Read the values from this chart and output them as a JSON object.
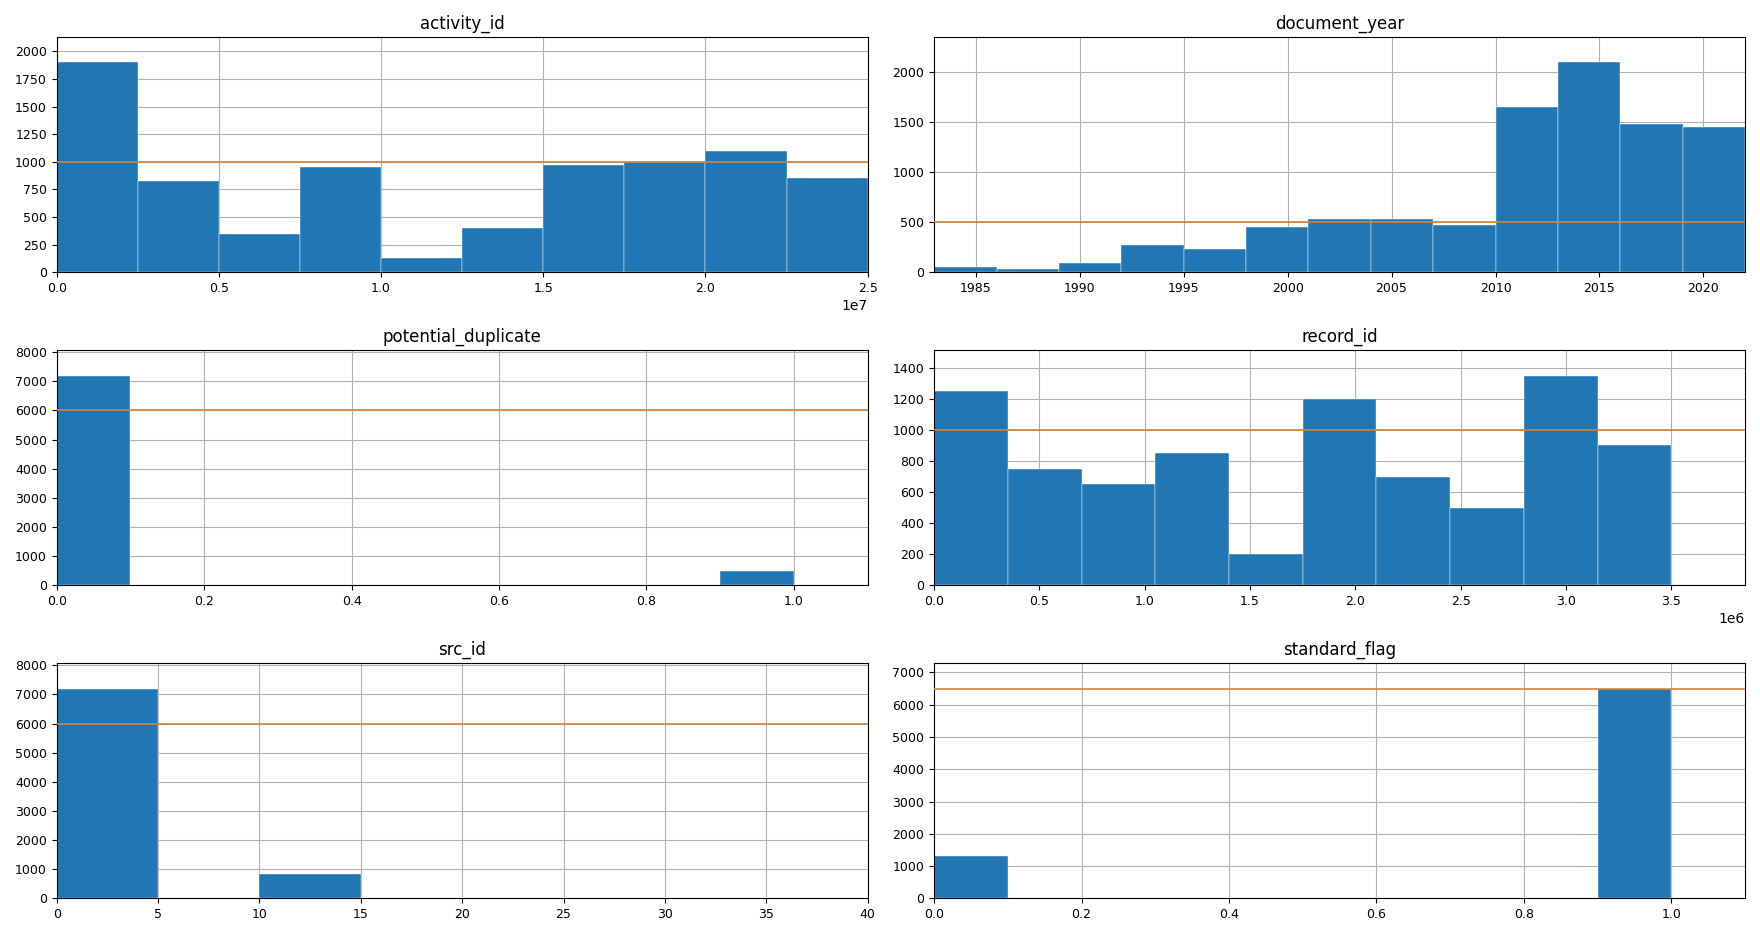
{
  "subplots": [
    {
      "title": "activity_id",
      "bin_edges": [
        0,
        2500000,
        5000000,
        7500000,
        10000000,
        12500000,
        15000000,
        17500000,
        20000000,
        22500000,
        25000000
      ],
      "bin_heights": [
        1900,
        825,
        350,
        950,
        125,
        400,
        975,
        1000,
        1100,
        850
      ],
      "row": 0,
      "col": 0,
      "hlines": [
        1000
      ]
    },
    {
      "title": "document_year",
      "bin_edges": [
        1983,
        1986,
        1989,
        1992,
        1995,
        1998,
        2001,
        2004,
        2007,
        2010,
        2013,
        2016,
        2019,
        2022
      ],
      "bin_heights": [
        50,
        30,
        90,
        275,
        230,
        450,
        535,
        530,
        475,
        1650,
        2100,
        1480,
        1450
      ],
      "row": 0,
      "col": 1,
      "hlines": [
        500
      ]
    },
    {
      "title": "potential_duplicate",
      "bin_edges": [
        0.0,
        0.1,
        0.2,
        0.3,
        0.4,
        0.5,
        0.6,
        0.7,
        0.8,
        0.9,
        1.0,
        1.1
      ],
      "bin_heights": [
        7200,
        0,
        0,
        0,
        0,
        0,
        0,
        0,
        0,
        500,
        0
      ],
      "row": 1,
      "col": 0,
      "hlines": [
        6000
      ]
    },
    {
      "title": "record_id",
      "bin_edges": [
        0,
        350000,
        700000,
        1050000,
        1400000,
        1750000,
        2100000,
        2450000,
        2800000,
        3150000,
        3500000,
        3850000
      ],
      "bin_heights": [
        1250,
        750,
        650,
        850,
        200,
        1200,
        700,
        500,
        1350,
        900,
        0
      ],
      "row": 1,
      "col": 1,
      "hlines": [
        1000
      ]
    },
    {
      "title": "src_id",
      "bin_edges": [
        0,
        5,
        10,
        15,
        20,
        25,
        30,
        35,
        40
      ],
      "bin_heights": [
        7200,
        0,
        850,
        0,
        0,
        0,
        0,
        20
      ],
      "row": 2,
      "col": 0,
      "hlines": [
        6000
      ]
    },
    {
      "title": "standard_flag",
      "bin_edges": [
        0.0,
        0.1,
        0.2,
        0.3,
        0.4,
        0.5,
        0.6,
        0.7,
        0.8,
        0.9,
        1.0,
        1.1
      ],
      "bin_heights": [
        1300,
        0,
        0,
        0,
        0,
        0,
        0,
        0,
        0,
        6500,
        0
      ],
      "row": 2,
      "col": 1,
      "hlines": [
        6500
      ]
    }
  ],
  "bar_color": "#2077b4",
  "grid_color": "#b0b0b0",
  "hline_color": "#cd8540",
  "fig_width": 17.6,
  "fig_height": 9.36,
  "dpi": 100
}
